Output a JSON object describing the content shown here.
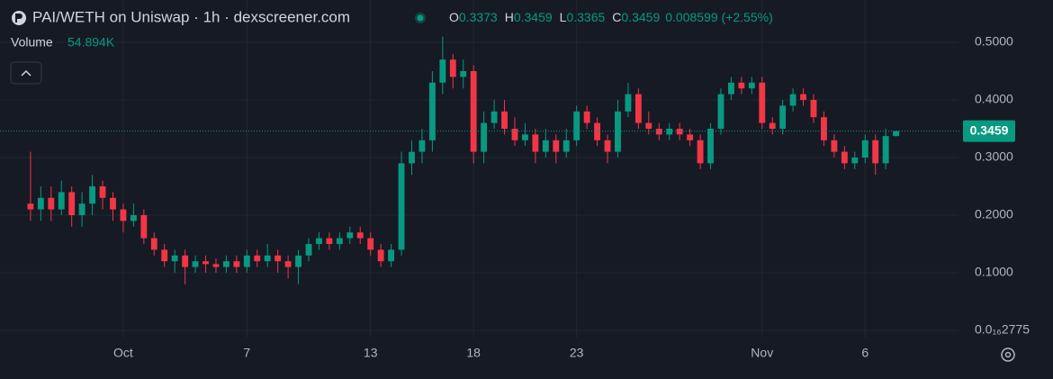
{
  "chart_data": {
    "type": "candlestick",
    "title": "PAI/WETH on Uniswap · 1h · dexscreener.com",
    "volume_label": "Volume",
    "volume_value": "54.894K",
    "legend_keys": [
      "O",
      "H",
      "L",
      "C"
    ],
    "change": "0.008599 (+2.55%)",
    "up_color": "#089981",
    "down_color": "#f23645",
    "grid": true,
    "xlim": [
      -4.67,
      40.4
    ],
    "ylim": [
      -0.0125,
      0.51875
    ],
    "xticks": [
      {
        "value": 0,
        "label": "Oct"
      },
      {
        "value": 6,
        "label": "7"
      },
      {
        "value": 12,
        "label": "13"
      },
      {
        "value": 17,
        "label": "18"
      },
      {
        "value": 22,
        "label": "23"
      },
      {
        "value": 31,
        "label": "Nov"
      },
      {
        "value": 36,
        "label": "6"
      }
    ],
    "yticks": [
      {
        "value": 2.775e-17,
        "label": "0.0₁₆2775"
      },
      {
        "value": 0.1,
        "label": "0.1000"
      },
      {
        "value": 0.2,
        "label": "0.2000"
      },
      {
        "value": 0.3,
        "label": "0.3000"
      },
      {
        "value": 0.4,
        "label": "0.4000"
      },
      {
        "value": 0.5,
        "label": "0.5000"
      }
    ],
    "x": [
      -4.5,
      -4,
      -3.5,
      -3,
      -2.5,
      -2,
      -1.5,
      -1,
      -0.5,
      0,
      0.5,
      1,
      1.5,
      2,
      2.5,
      3,
      3.5,
      4,
      4.5,
      5,
      5.5,
      6,
      6.5,
      7,
      7.5,
      8,
      8.5,
      9,
      9.5,
      10,
      10.5,
      11,
      11.5,
      12,
      12.5,
      13,
      13.5,
      14,
      14.5,
      15,
      15.5,
      16,
      16.5,
      17,
      17.5,
      18,
      18.5,
      19,
      19.5,
      20,
      20.5,
      21,
      21.5,
      22,
      22.5,
      23,
      23.5,
      24,
      24.5,
      25,
      25.5,
      26,
      26.5,
      27,
      27.5,
      28,
      28.5,
      29,
      29.5,
      30,
      30.5,
      31,
      31.5,
      32,
      32.5,
      33,
      33.5,
      34,
      34.5,
      35,
      35.5,
      36,
      36.5,
      37,
      37.5
    ],
    "open": [
      0.22,
      0.21,
      0.23,
      0.21,
      0.24,
      0.2,
      0.22,
      0.25,
      0.23,
      0.21,
      0.19,
      0.2,
      0.16,
      0.14,
      0.12,
      0.13,
      0.11,
      0.12,
      0.115,
      0.11,
      0.12,
      0.11,
      0.13,
      0.12,
      0.13,
      0.12,
      0.11,
      0.13,
      0.15,
      0.16,
      0.15,
      0.16,
      0.17,
      0.16,
      0.14,
      0.12,
      0.14,
      0.29,
      0.31,
      0.33,
      0.43,
      0.47,
      0.44,
      0.45,
      0.31,
      0.36,
      0.38,
      0.35,
      0.33,
      0.34,
      0.31,
      0.33,
      0.31,
      0.33,
      0.38,
      0.36,
      0.33,
      0.31,
      0.38,
      0.41,
      0.36,
      0.35,
      0.34,
      0.35,
      0.34,
      0.33,
      0.29,
      0.35,
      0.41,
      0.43,
      0.42,
      0.43,
      0.36,
      0.35,
      0.39,
      0.41,
      0.4,
      0.37,
      0.33,
      0.31,
      0.29,
      0.3,
      0.33,
      0.29,
      0.3373
    ],
    "high": [
      0.31,
      0.25,
      0.25,
      0.26,
      0.25,
      0.24,
      0.27,
      0.26,
      0.24,
      0.22,
      0.22,
      0.21,
      0.17,
      0.15,
      0.14,
      0.14,
      0.13,
      0.13,
      0.125,
      0.13,
      0.13,
      0.14,
      0.14,
      0.15,
      0.14,
      0.13,
      0.14,
      0.16,
      0.17,
      0.17,
      0.17,
      0.18,
      0.18,
      0.17,
      0.15,
      0.15,
      0.31,
      0.33,
      0.35,
      0.45,
      0.51,
      0.48,
      0.47,
      0.46,
      0.38,
      0.4,
      0.4,
      0.37,
      0.36,
      0.35,
      0.35,
      0.34,
      0.35,
      0.39,
      0.39,
      0.37,
      0.34,
      0.4,
      0.43,
      0.42,
      0.38,
      0.36,
      0.36,
      0.36,
      0.35,
      0.34,
      0.36,
      0.42,
      0.44,
      0.44,
      0.44,
      0.44,
      0.37,
      0.4,
      0.42,
      0.42,
      0.41,
      0.38,
      0.34,
      0.32,
      0.31,
      0.34,
      0.34,
      0.35,
      0.3459
    ],
    "low": [
      0.19,
      0.19,
      0.19,
      0.2,
      0.18,
      0.18,
      0.2,
      0.21,
      0.19,
      0.17,
      0.18,
      0.15,
      0.13,
      0.11,
      0.1,
      0.08,
      0.1,
      0.1,
      0.1,
      0.1,
      0.1,
      0.1,
      0.11,
      0.11,
      0.1,
      0.09,
      0.08,
      0.12,
      0.14,
      0.14,
      0.14,
      0.15,
      0.15,
      0.13,
      0.11,
      0.11,
      0.13,
      0.27,
      0.29,
      0.31,
      0.41,
      0.42,
      0.42,
      0.29,
      0.29,
      0.35,
      0.34,
      0.32,
      0.32,
      0.29,
      0.3,
      0.29,
      0.3,
      0.32,
      0.35,
      0.32,
      0.29,
      0.3,
      0.37,
      0.35,
      0.34,
      0.33,
      0.33,
      0.33,
      0.32,
      0.28,
      0.28,
      0.34,
      0.4,
      0.41,
      0.41,
      0.35,
      0.34,
      0.34,
      0.38,
      0.39,
      0.36,
      0.32,
      0.3,
      0.28,
      0.28,
      0.29,
      0.27,
      0.28,
      0.3365
    ],
    "close": [
      0.21,
      0.23,
      0.21,
      0.24,
      0.2,
      0.22,
      0.25,
      0.23,
      0.21,
      0.19,
      0.2,
      0.16,
      0.14,
      0.12,
      0.13,
      0.11,
      0.12,
      0.115,
      0.11,
      0.12,
      0.11,
      0.13,
      0.12,
      0.13,
      0.12,
      0.11,
      0.13,
      0.15,
      0.16,
      0.15,
      0.16,
      0.17,
      0.16,
      0.14,
      0.12,
      0.14,
      0.29,
      0.31,
      0.33,
      0.43,
      0.47,
      0.44,
      0.45,
      0.31,
      0.36,
      0.38,
      0.35,
      0.33,
      0.34,
      0.31,
      0.33,
      0.31,
      0.33,
      0.38,
      0.36,
      0.33,
      0.31,
      0.38,
      0.41,
      0.36,
      0.35,
      0.34,
      0.35,
      0.34,
      0.33,
      0.29,
      0.35,
      0.41,
      0.43,
      0.42,
      0.43,
      0.36,
      0.35,
      0.39,
      0.41,
      0.4,
      0.37,
      0.33,
      0.31,
      0.29,
      0.3,
      0.33,
      0.29,
      0.3373,
      0.3459
    ]
  }
}
